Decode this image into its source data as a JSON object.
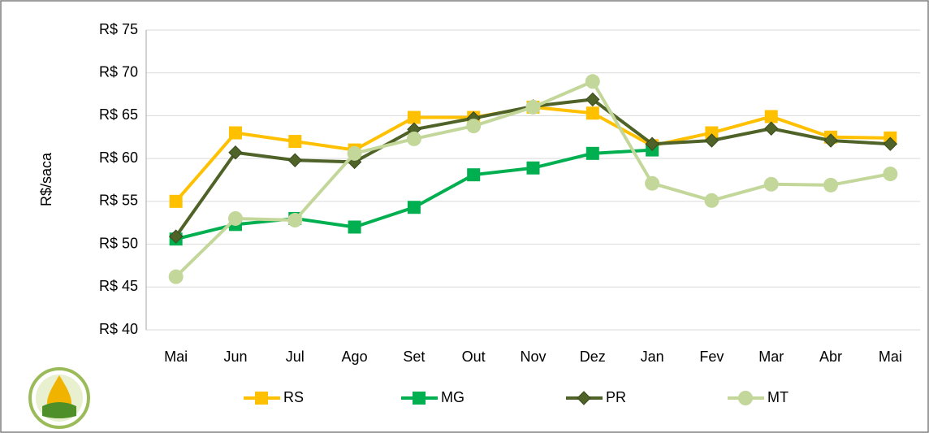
{
  "chart_data": {
    "type": "line",
    "y_label": "R$/saca",
    "categories": [
      "Mai",
      "Jun",
      "Jul",
      "Ago",
      "Set",
      "Out",
      "Nov",
      "Dez",
      "Jan",
      "Fev",
      "Mar",
      "Abr",
      "Mai"
    ],
    "ylim": [
      40,
      75
    ],
    "yticks": [
      {
        "value": 40,
        "label": "R$ 40"
      },
      {
        "value": 45,
        "label": "R$ 45"
      },
      {
        "value": 50,
        "label": "R$ 50"
      },
      {
        "value": 55,
        "label": "R$ 55"
      },
      {
        "value": 60,
        "label": "R$ 60"
      },
      {
        "value": 65,
        "label": "R$ 65"
      },
      {
        "value": 70,
        "label": "R$ 70"
      },
      {
        "value": 75,
        "label": "R$ 75"
      }
    ],
    "grid": true,
    "legend": "bottom",
    "series": [
      {
        "name": "RS",
        "color": "#ffc000",
        "marker": "square",
        "values": [
          55,
          63,
          62,
          61,
          64.8,
          64.8,
          66,
          65.3,
          61.5,
          63,
          64.9,
          62.5,
          62.4
        ]
      },
      {
        "name": "MG",
        "color": "#00b050",
        "marker": "square",
        "values": [
          50.6,
          52.3,
          53,
          52,
          54.3,
          58.1,
          58.9,
          60.6,
          61,
          null,
          null,
          null,
          null
        ]
      },
      {
        "name": "PR",
        "color": "#4f6228",
        "marker": "diamond",
        "values": [
          50.9,
          60.7,
          59.8,
          59.6,
          63.4,
          64.7,
          66.1,
          66.9,
          61.7,
          62.1,
          63.5,
          62.1,
          61.7
        ]
      },
      {
        "name": "MT",
        "color": "#c4d79b",
        "marker": "circle",
        "values": [
          46.2,
          53,
          52.8,
          60.6,
          62.3,
          63.8,
          66,
          69,
          57.1,
          55.1,
          57,
          56.9,
          58.2
        ]
      }
    ]
  }
}
